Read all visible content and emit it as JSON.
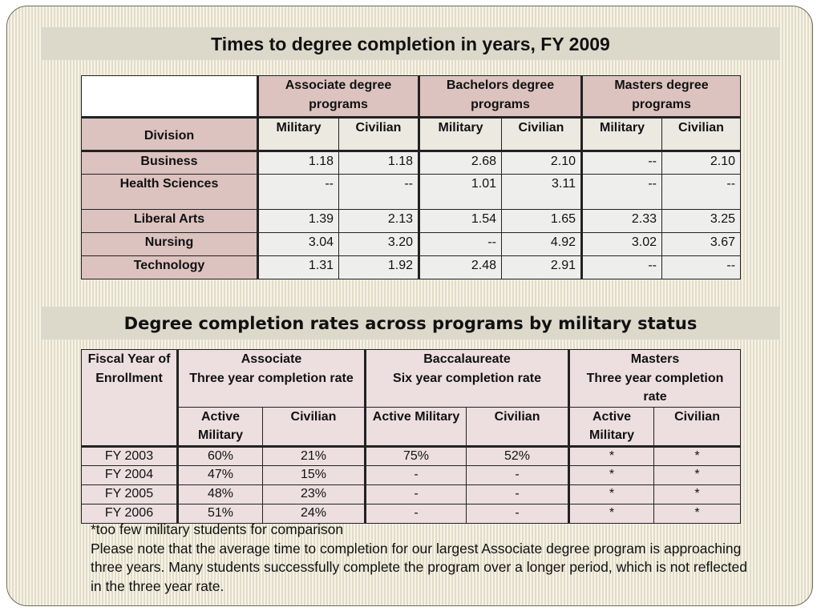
{
  "table1": {
    "title": "Times to degree completion in years, FY 2009",
    "division_label": "Division",
    "program_groups": [
      "Associate degree programs",
      "Bachelors degree programs",
      "Masters degree programs"
    ],
    "subheaders": [
      "Military",
      "Civilian",
      "Military",
      "Civilian",
      "Military",
      "Civilian"
    ],
    "rows": [
      {
        "division": "Business",
        "values": [
          "1.18",
          "1.18",
          "2.68",
          "2.10",
          "--",
          "2.10"
        ]
      },
      {
        "division": "Health Sciences",
        "values": [
          "--",
          "--",
          "1.01",
          "3.11",
          "--",
          "--"
        ]
      },
      {
        "division": "Liberal Arts",
        "values": [
          "1.39",
          "2.13",
          "1.54",
          "1.65",
          "2.33",
          "3.25"
        ]
      },
      {
        "division": "Nursing",
        "values": [
          "3.04",
          "3.20",
          "--",
          "4.92",
          "3.02",
          "3.67"
        ]
      },
      {
        "division": "Technology",
        "values": [
          "1.31",
          "1.92",
          "2.48",
          "2.91",
          "--",
          "--"
        ]
      }
    ]
  },
  "table2": {
    "title": "Degree completion rates across programs by military status",
    "year_label": "Fiscal Year of Enrollment",
    "groups": [
      {
        "name": "Associate",
        "subtitle": "Three year completion rate"
      },
      {
        "name": "Baccalaureate",
        "subtitle": "Six year completion rate"
      },
      {
        "name": "Masters",
        "subtitle": "Three year completion rate"
      }
    ],
    "subheaders": [
      "Active Military",
      "Civilian",
      "Active Military",
      "Civilian",
      "Active Military",
      "Civilian"
    ],
    "rows": [
      {
        "year": "FY 2003",
        "values": [
          "60%",
          "21%",
          "75%",
          "52%",
          "*",
          "*"
        ]
      },
      {
        "year": "FY 2004",
        "values": [
          "47%",
          "15%",
          "-",
          "-",
          "*",
          "*"
        ]
      },
      {
        "year": "FY 2005",
        "values": [
          "48%",
          "23%",
          "-",
          "-",
          "*",
          "*"
        ]
      },
      {
        "year": "FY 2006",
        "values": [
          "51%",
          "24%",
          "-",
          "-",
          "*",
          "*"
        ]
      }
    ]
  },
  "notes": {
    "footnote": "*too few military students for comparison",
    "note": "Please note that the average time to completion for our largest Associate degree program is approaching three years.  Many students successfully complete the program over a longer period, which is not reflected in the three year rate."
  }
}
